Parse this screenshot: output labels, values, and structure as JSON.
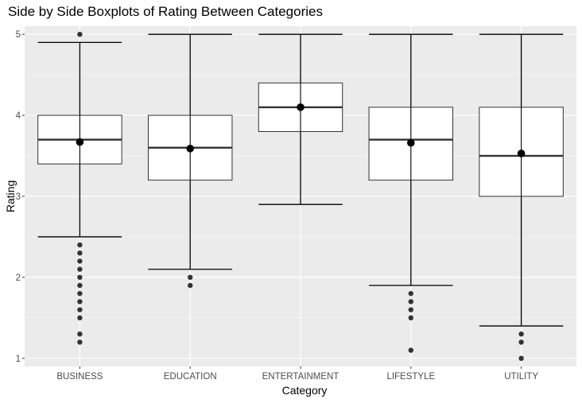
{
  "chart_data": {
    "type": "boxplot",
    "title": "Side by Side Boxplots of Rating Between Categories",
    "xlabel": "Category",
    "ylabel": "Rating",
    "ylim": [
      0.9,
      5.1
    ],
    "yticks": [
      1,
      2,
      3,
      4,
      5
    ],
    "grid": true,
    "categories": [
      "BUSINESS",
      "EDUCATION",
      "ENTERTAINMENT",
      "LIFESTYLE",
      "UTILITY"
    ],
    "series": [
      {
        "category": "BUSINESS",
        "whisker_low": 2.5,
        "q1": 3.4,
        "median": 3.7,
        "q3": 4.0,
        "whisker_high": 4.9,
        "mean": 3.67,
        "outliers": [
          5.0,
          2.4,
          2.3,
          2.2,
          2.1,
          2.0,
          1.9,
          1.8,
          1.7,
          1.6,
          1.5,
          1.3,
          1.2
        ]
      },
      {
        "category": "EDUCATION",
        "whisker_low": 2.1,
        "q1": 3.2,
        "median": 3.6,
        "q3": 4.0,
        "whisker_high": 5.0,
        "mean": 3.59,
        "outliers": [
          2.0,
          1.9
        ]
      },
      {
        "category": "ENTERTAINMENT",
        "whisker_low": 2.9,
        "q1": 3.8,
        "median": 4.1,
        "q3": 4.4,
        "whisker_high": 5.0,
        "mean": 4.1,
        "outliers": []
      },
      {
        "category": "LIFESTYLE",
        "whisker_low": 1.9,
        "q1": 3.2,
        "median": 3.7,
        "q3": 4.1,
        "whisker_high": 5.0,
        "mean": 3.66,
        "outliers": [
          1.8,
          1.7,
          1.6,
          1.5,
          1.1
        ]
      },
      {
        "category": "UTILITY",
        "whisker_low": 1.4,
        "q1": 3.0,
        "median": 3.5,
        "q3": 4.1,
        "whisker_high": 5.0,
        "mean": 3.53,
        "outliers": [
          1.3,
          1.2,
          1.0
        ]
      }
    ],
    "colors": {
      "panel": "#ebebeb",
      "grid": "#ffffff",
      "box_fill": "#ffffff",
      "box_line": "#333333",
      "whisker": "#000000",
      "point": "#333333",
      "mean_point": "#000000"
    }
  }
}
